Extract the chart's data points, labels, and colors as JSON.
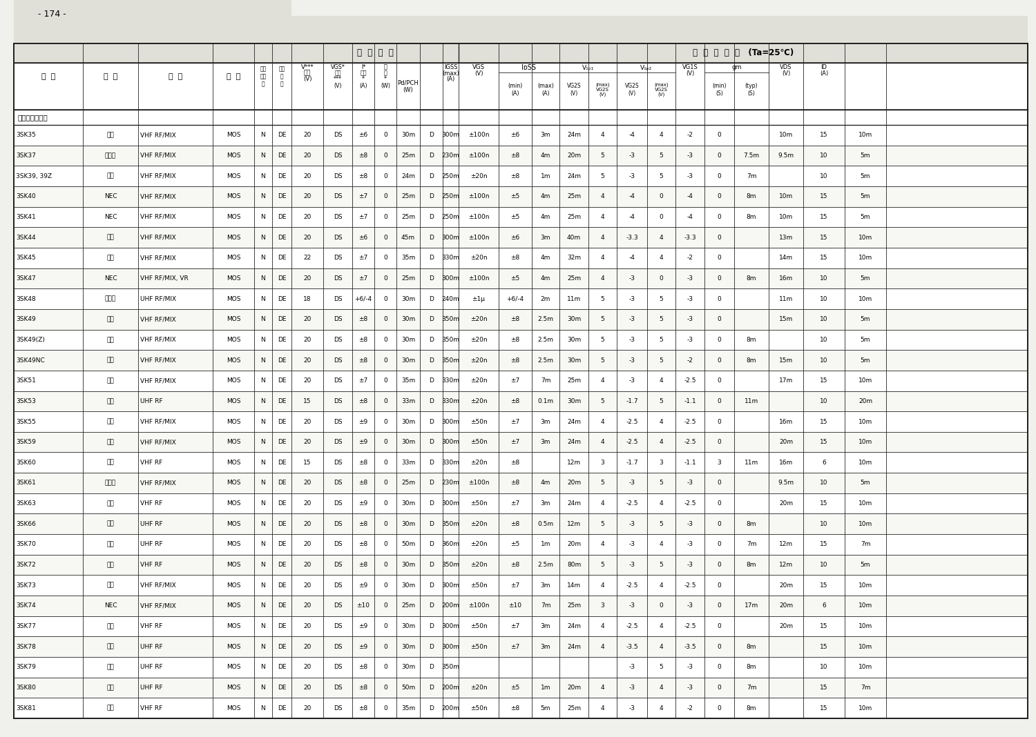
{
  "page_number": "- 174 -",
  "subheader": "デュアルゲート",
  "header1_left_text": "最  大  定  格",
  "header1_right_text": "電  気  的  特  性   (Ta=25℃)",
  "col0_header": "型  名",
  "col1_header": "社  名",
  "col2_header": "用  途",
  "col3_header": "構  造",
  "rows": [
    [
      "3SK35",
      "東苗",
      "VHF RF/MIX",
      "MOS",
      "N",
      "DE",
      "20",
      "DS",
      "±6",
      "0",
      "30m",
      "D",
      "300m",
      "±100n",
      "±6",
      "3m",
      "24m",
      "4",
      "-4",
      "4",
      "-2",
      "0",
      "",
      "10m",
      "15",
      "10m"
    ],
    [
      "3SK37",
      "ソニー",
      "VHF RF/MIX",
      "MOS",
      "N",
      "DE",
      "20",
      "DS",
      "±8",
      "0",
      "25m",
      "D",
      "230m",
      "±100n",
      "±8",
      "4m",
      "20m",
      "5",
      "-3",
      "5",
      "-3",
      "0",
      "7.5m",
      "9.5m",
      "10",
      "5m"
    ],
    [
      "3SK39, 39Z",
      "松下",
      "VHF RF/MIX",
      "MOS",
      "N",
      "DE",
      "20",
      "DS",
      "±8",
      "0",
      "24m",
      "D",
      "250m",
      "±20n",
      "±8",
      "1m",
      "24m",
      "5",
      "-3",
      "5",
      "-3",
      "0",
      "7m",
      "",
      "10",
      "5m"
    ],
    [
      "3SK40",
      "NEC",
      "VHF RF/MIX",
      "MOS",
      "N",
      "DE",
      "20",
      "DS",
      "±7",
      "0",
      "25m",
      "D",
      "250m",
      "±100n",
      "±5",
      "4m",
      "25m",
      "4",
      "-4",
      "0",
      "-4",
      "0",
      "8m",
      "10m",
      "15",
      "5m"
    ],
    [
      "3SK41",
      "NEC",
      "VHF RF/MIX",
      "MOS",
      "N",
      "DE",
      "20",
      "DS",
      "±7",
      "0",
      "25m",
      "D",
      "250m",
      "±100n",
      "±5",
      "4m",
      "25m",
      "4",
      "-4",
      "0",
      "-4",
      "0",
      "8m",
      "10m",
      "15",
      "5m"
    ],
    [
      "3SK44",
      "東苗",
      "VHF RF/MIX",
      "MOS",
      "N",
      "DE",
      "20",
      "DS",
      "±6",
      "0",
      "45m",
      "D",
      "300m",
      "±100n",
      "±6",
      "3m",
      "40m",
      "4",
      "-3.3",
      "4",
      "-3.3",
      "0",
      "",
      "13m",
      "15",
      "10m"
    ],
    [
      "3SK45",
      "日立",
      "VHF RF/MIX",
      "MOS",
      "N",
      "DE",
      "22",
      "DS",
      "±7",
      "0",
      "35m",
      "D",
      "330m",
      "±20n",
      "±8",
      "4m",
      "32m",
      "4",
      "-4",
      "4",
      "-2",
      "0",
      "",
      "14m",
      "15",
      "10m"
    ],
    [
      "3SK47",
      "NEC",
      "VHF RF/MIX, VR",
      "MOS",
      "N",
      "DE",
      "20",
      "DS",
      "±7",
      "0",
      "25m",
      "D",
      "300m",
      "±100n",
      "±5",
      "4m",
      "25m",
      "4",
      "-3",
      "0",
      "-3",
      "0",
      "8m",
      "16m",
      "10",
      "5m"
    ],
    [
      "3SK48",
      "ソニー",
      "UHF RF/MIX",
      "MOS",
      "N",
      "DE",
      "18",
      "DS",
      "+6/-4",
      "0",
      "30m",
      "D",
      "240m",
      "±1μ",
      "+6/-4",
      "2m",
      "11m",
      "5",
      "-3",
      "5",
      "-3",
      "0",
      "",
      "11m",
      "10",
      "10m"
    ],
    [
      "3SK49",
      "松下",
      "VHF RF/MIX",
      "MOS",
      "N",
      "DE",
      "20",
      "DS",
      "±8",
      "0",
      "30m",
      "D",
      "350m",
      "±20n",
      "±8",
      "2.5m",
      "30m",
      "5",
      "-3",
      "5",
      "-3",
      "0",
      "",
      "15m",
      "10",
      "5m"
    ],
    [
      "3SK49(Z)",
      "松下",
      "VHF RF/MIX",
      "MOS",
      "N",
      "DE",
      "20",
      "DS",
      "±8",
      "0",
      "30m",
      "D",
      "350m",
      "±20n",
      "±8",
      "2.5m",
      "30m",
      "5",
      "-3",
      "5",
      "-3",
      "0",
      "8m",
      "",
      "10",
      "5m"
    ],
    [
      "3SK49NC",
      "松下",
      "VHF RF/MIX",
      "MOS",
      "N",
      "DE",
      "20",
      "DS",
      "±8",
      "0",
      "30m",
      "D",
      "350m",
      "±20n",
      "±8",
      "2.5m",
      "30m",
      "5",
      "-3",
      "5",
      "-2",
      "0",
      "8m",
      "15m",
      "10",
      "5m"
    ],
    [
      "3SK51",
      "日立",
      "VHF RF/MIX",
      "MOS",
      "N",
      "DE",
      "20",
      "DS",
      "±7",
      "0",
      "35m",
      "D",
      "330m",
      "±20n",
      "±7",
      "7m",
      "25m",
      "4",
      "-3",
      "4",
      "-2.5",
      "0",
      "",
      "17m",
      "15",
      "10m"
    ],
    [
      "3SK53",
      "日立",
      "UHF RF",
      "MOS",
      "N",
      "DE",
      "15",
      "DS",
      "±8",
      "0",
      "33m",
      "D",
      "330m",
      "±20n",
      "±8",
      "0.1m",
      "30m",
      "5",
      "-1.7",
      "5",
      "-1.1",
      "0",
      "11m",
      "",
      "10",
      "20m"
    ],
    [
      "3SK55",
      "東苗",
      "VHF RF/MIX",
      "MOS",
      "N",
      "DE",
      "20",
      "DS",
      "±9",
      "0",
      "30m",
      "D",
      "300m",
      "±50n",
      "±7",
      "3m",
      "24m",
      "4",
      "-2.5",
      "4",
      "-2.5",
      "0",
      "",
      "16m",
      "15",
      "10m"
    ],
    [
      "3SK59",
      "東苗",
      "VHF RF/MIX",
      "MOS",
      "N",
      "DE",
      "20",
      "DS",
      "±9",
      "0",
      "30m",
      "D",
      "300m",
      "±50n",
      "±7",
      "3m",
      "24m",
      "4",
      "-2.5",
      "4",
      "-2.5",
      "0",
      "",
      "20m",
      "15",
      "10m"
    ],
    [
      "3SK60",
      "日立",
      "VHF RF",
      "MOS",
      "N",
      "DE",
      "15",
      "DS",
      "±8",
      "0",
      "33m",
      "D",
      "330m",
      "±20n",
      "±8",
      "",
      "12m",
      "3",
      "-1.7",
      "3",
      "-1.1",
      "3",
      "11m",
      "16m",
      "6",
      "10m"
    ],
    [
      "3SK61",
      "ソニー",
      "VHF RF/MIX",
      "MOS",
      "N",
      "DE",
      "20",
      "DS",
      "±8",
      "0",
      "25m",
      "D",
      "230m",
      "±100n",
      "±8",
      "4m",
      "20m",
      "5",
      "-3",
      "5",
      "-3",
      "0",
      "",
      "9.5m",
      "10",
      "5m"
    ],
    [
      "3SK63",
      "東苗",
      "VHF RF",
      "MOS",
      "N",
      "DE",
      "20",
      "DS",
      "±9",
      "0",
      "30m",
      "D",
      "300m",
      "±50n",
      "±7",
      "3m",
      "24m",
      "4",
      "-2.5",
      "4",
      "-2.5",
      "0",
      "",
      "20m",
      "15",
      "10m"
    ],
    [
      "3SK66",
      "松下",
      "UHF RF",
      "MOS",
      "N",
      "DE",
      "20",
      "DS",
      "±8",
      "0",
      "30m",
      "D",
      "350m",
      "±20n",
      "±8",
      "0.5m",
      "12m",
      "5",
      "-3",
      "5",
      "-3",
      "0",
      "8m",
      "",
      "10",
      "10m"
    ],
    [
      "3SK70",
      "日立",
      "UHF RF",
      "MOS",
      "N",
      "DE",
      "20",
      "DS",
      "±8",
      "0",
      "50m",
      "D",
      "360m",
      "±20n",
      "±5",
      "1m",
      "20m",
      "4",
      "-3",
      "4",
      "-3",
      "0",
      "7m",
      "12m",
      "15",
      "7m"
    ],
    [
      "3SK72",
      "松下",
      "VHF RF",
      "MOS",
      "N",
      "DE",
      "20",
      "DS",
      "±8",
      "0",
      "30m",
      "D",
      "350m",
      "±20n",
      "±8",
      "2.5m",
      "80m",
      "5",
      "-3",
      "5",
      "-3",
      "0",
      "8m",
      "12m",
      "10",
      "5m"
    ],
    [
      "3SK73",
      "東苗",
      "VHF RF/MIX",
      "MOS",
      "N",
      "DE",
      "20",
      "DS",
      "±9",
      "0",
      "30m",
      "D",
      "300m",
      "±50n",
      "±7",
      "3m",
      "14m",
      "4",
      "-2.5",
      "4",
      "-2.5",
      "0",
      "",
      "20m",
      "15",
      "10m"
    ],
    [
      "3SK74",
      "NEC",
      "VHF RF/MIX",
      "MOS",
      "N",
      "DE",
      "20",
      "DS",
      "±10",
      "0",
      "25m",
      "D",
      "200m",
      "±100n",
      "±10",
      "7m",
      "25m",
      "3",
      "-3",
      "0",
      "-3",
      "0",
      "17m",
      "20m",
      "6",
      "10m"
    ],
    [
      "3SK77",
      "東苗",
      "VHF RF",
      "MOS",
      "N",
      "DE",
      "20",
      "DS",
      "±9",
      "0",
      "30m",
      "D",
      "300m",
      "±50n",
      "±7",
      "3m",
      "24m",
      "4",
      "-2.5",
      "4",
      "-2.5",
      "0",
      "",
      "20m",
      "15",
      "10m"
    ],
    [
      "3SK78",
      "東苗",
      "UHF RF",
      "MOS",
      "N",
      "DE",
      "20",
      "DS",
      "±9",
      "0",
      "30m",
      "D",
      "300m",
      "±50n",
      "±7",
      "3m",
      "24m",
      "4",
      "-3.5",
      "4",
      "-3.5",
      "0",
      "8m",
      "",
      "15",
      "10m"
    ],
    [
      "3SK79",
      "松下",
      "UHF RF",
      "MOS",
      "N",
      "DE",
      "20",
      "DS",
      "±8",
      "0",
      "30m",
      "D",
      "350m",
      "",
      "",
      "",
      "",
      "",
      "-3",
      "5",
      "-3",
      "0",
      "8m",
      "",
      "10",
      "10m"
    ],
    [
      "3SK80",
      "日立",
      "UHF RF",
      "MOS",
      "N",
      "DE",
      "20",
      "DS",
      "±8",
      "0",
      "50m",
      "D",
      "200m",
      "±20n",
      "±5",
      "1m",
      "20m",
      "4",
      "-3",
      "4",
      "-3",
      "0",
      "7m",
      "",
      "15",
      "7m"
    ],
    [
      "3SK81",
      "日立",
      "VHF RF",
      "MOS",
      "N",
      "DE",
      "20",
      "DS",
      "±8",
      "0",
      "35m",
      "D",
      "200m",
      "±50n",
      "±8",
      "5m",
      "25m",
      "4",
      "-3",
      "4",
      "-2",
      "0",
      "8m",
      "",
      "15",
      "10m"
    ]
  ],
  "bg_color": "#f0f0ec",
  "table_bg": "#ffffff",
  "line_color": "#222222",
  "header_bg": "#e0e0d8"
}
